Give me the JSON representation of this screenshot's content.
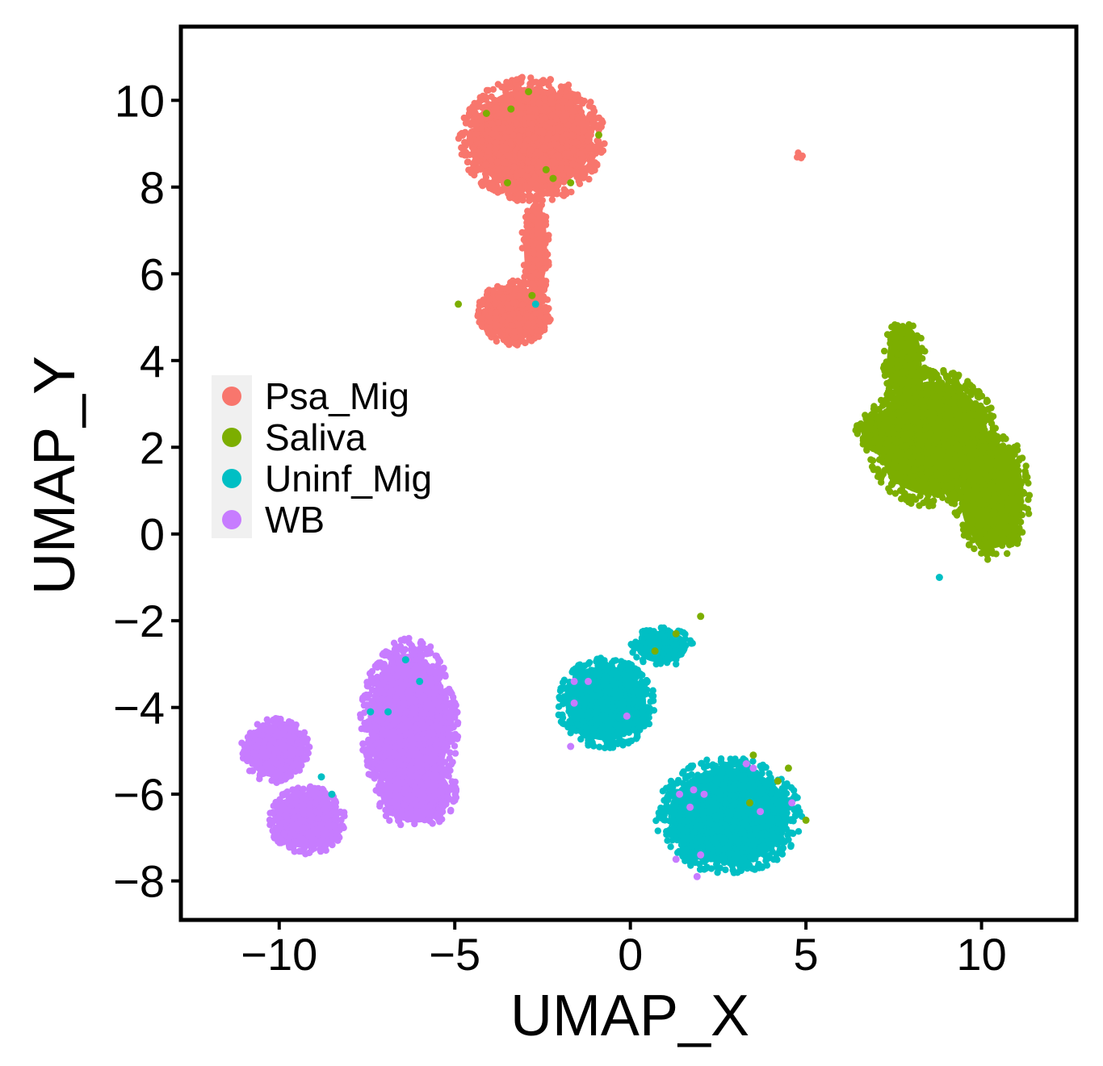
{
  "chart_data": {
    "type": "scatter",
    "title": "",
    "xlabel": "UMAP_X",
    "ylabel": "UMAP_Y",
    "xlim": [
      -12.8,
      12.7
    ],
    "ylim": [
      -8.9,
      11.7
    ],
    "x_ticks": [
      -10,
      -5,
      0,
      5,
      10
    ],
    "x_tick_labels": [
      "−10",
      "−5",
      "0",
      "5",
      "10"
    ],
    "y_ticks": [
      -8,
      -6,
      -4,
      -2,
      0,
      2,
      4,
      6,
      8,
      10
    ],
    "y_tick_labels": [
      "−8",
      "−6",
      "−4",
      "−2",
      "0",
      "2",
      "4",
      "6",
      "8",
      "10"
    ],
    "grid": false,
    "legend_position": "left-middle",
    "legend": [
      {
        "label": "Psa_Mig",
        "color": "#F8766D"
      },
      {
        "label": "Saliva",
        "color": "#7CAE00"
      },
      {
        "label": "Uninf_Mig",
        "color": "#00BFC4"
      },
      {
        "label": "WB",
        "color": "#C77CFF"
      }
    ],
    "series": [
      {
        "name": "Psa_Mig",
        "color": "#F8766D",
        "clusters": [
          {
            "cx": -2.8,
            "cy": 9.1,
            "rx": 2.1,
            "ry": 1.45,
            "n": 900
          },
          {
            "cx": -3.3,
            "cy": 5.1,
            "rx": 1.05,
            "ry": 0.75,
            "n": 320
          },
          {
            "cx": -2.7,
            "cy": 6.6,
            "rx": 0.4,
            "ry": 1.3,
            "n": 120
          },
          {
            "cx": 4.8,
            "cy": 8.7,
            "rx": 0.12,
            "ry": 0.1,
            "n": 6
          }
        ]
      },
      {
        "name": "Saliva",
        "color": "#7CAE00",
        "clusters": [
          {
            "cx": 8.6,
            "cy": 2.2,
            "rx": 1.9,
            "ry": 1.6,
            "n": 700
          },
          {
            "cx": 10.3,
            "cy": 0.9,
            "rx": 1.1,
            "ry": 1.5,
            "n": 350
          },
          {
            "cx": 7.8,
            "cy": 4.0,
            "rx": 0.6,
            "ry": 1.0,
            "n": 120
          },
          {
            "cx": 7.3,
            "cy": 2.4,
            "rx": 0.9,
            "ry": 0.5,
            "n": 120
          }
        ],
        "outliers": [
          [
            -3.4,
            9.8
          ],
          [
            -4.1,
            9.7
          ],
          [
            -2.9,
            10.2
          ],
          [
            -2.4,
            8.4
          ],
          [
            -1.7,
            8.1
          ],
          [
            -3.5,
            8.1
          ],
          [
            -0.9,
            9.2
          ],
          [
            -2.2,
            8.2
          ],
          [
            -2.8,
            5.5
          ],
          [
            -4.9,
            5.3
          ],
          [
            1.3,
            -2.3
          ],
          [
            0.7,
            -2.7
          ],
          [
            2.0,
            -1.9
          ],
          [
            3.4,
            -6.2
          ],
          [
            4.2,
            -5.7
          ],
          [
            4.5,
            -5.4
          ],
          [
            5.0,
            -6.6
          ],
          [
            3.5,
            -5.1
          ]
        ]
      },
      {
        "name": "Uninf_Mig",
        "color": "#00BFC4",
        "clusters": [
          {
            "cx": -0.7,
            "cy": -3.9,
            "rx": 1.4,
            "ry": 1.05,
            "n": 450
          },
          {
            "cx": 0.9,
            "cy": -2.6,
            "rx": 0.9,
            "ry": 0.45,
            "n": 100
          },
          {
            "cx": 2.8,
            "cy": -6.5,
            "rx": 2.1,
            "ry": 1.35,
            "n": 750
          }
        ],
        "outliers": [
          [
            -8.8,
            -5.6
          ],
          [
            -7.4,
            -4.1
          ],
          [
            -8.5,
            -6.0
          ],
          [
            -6.0,
            -3.4
          ],
          [
            -6.4,
            -2.9
          ],
          [
            -2.7,
            5.3
          ],
          [
            8.8,
            -1.0
          ],
          [
            -6.9,
            -4.1
          ]
        ]
      },
      {
        "name": "WB",
        "color": "#C77CFF",
        "clusters": [
          {
            "cx": -6.3,
            "cy": -4.4,
            "rx": 1.4,
            "ry": 2.0,
            "n": 700
          },
          {
            "cx": -6.1,
            "cy": -6.0,
            "rx": 1.2,
            "ry": 0.8,
            "n": 180
          },
          {
            "cx": -10.1,
            "cy": -5.0,
            "rx": 1.0,
            "ry": 0.75,
            "n": 250
          },
          {
            "cx": -9.2,
            "cy": -6.6,
            "rx": 1.1,
            "ry": 0.8,
            "n": 300
          }
        ],
        "outliers": [
          [
            -1.7,
            -4.9
          ],
          [
            -1.6,
            -3.4
          ],
          [
            -1.2,
            -3.4
          ],
          [
            -1.6,
            -3.9
          ],
          [
            -0.1,
            -4.2
          ],
          [
            1.8,
            -5.9
          ],
          [
            2.0,
            -7.4
          ],
          [
            3.3,
            -5.3
          ],
          [
            3.5,
            -5.4
          ],
          [
            1.4,
            -6.0
          ],
          [
            2.1,
            -6.0
          ],
          [
            1.7,
            -6.3
          ],
          [
            1.3,
            -7.5
          ],
          [
            1.9,
            -7.9
          ],
          [
            3.7,
            -6.4
          ],
          [
            4.6,
            -6.2
          ]
        ]
      }
    ]
  }
}
